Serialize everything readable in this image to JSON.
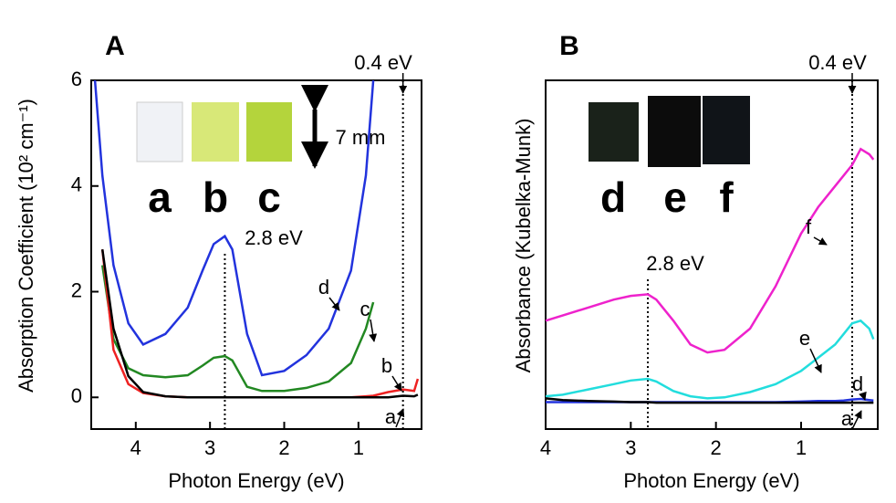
{
  "chart_data": [
    {
      "type": "line",
      "panel": "A",
      "xlabel": "Photon Energy (eV)",
      "ylabel": "Absorption Coefficient (10² cm⁻¹)",
      "x": [
        4.55,
        4.45,
        4.3,
        4.1,
        3.9,
        3.6,
        3.3,
        3.1,
        2.95,
        2.8,
        2.7,
        2.5,
        2.3,
        2.0,
        1.7,
        1.4,
        1.1,
        0.9,
        0.8,
        0.6,
        0.4,
        0.25,
        0.2
      ],
      "series": [
        {
          "name": "d",
          "color": "#2233dd",
          "values": [
            6,
            4.2,
            2.5,
            1.4,
            1.0,
            1.2,
            1.7,
            2.4,
            2.9,
            3.05,
            2.8,
            1.2,
            0.42,
            0.5,
            0.8,
            1.3,
            2.4,
            4.2,
            6,
            null,
            null,
            null,
            null
          ]
        },
        {
          "name": "c",
          "color": "#228822",
          "values": [
            null,
            2.5,
            1.1,
            0.55,
            0.42,
            0.38,
            0.42,
            0.6,
            0.75,
            0.78,
            0.7,
            0.2,
            0.12,
            0.12,
            0.18,
            0.3,
            0.65,
            1.3,
            1.8,
            null,
            null,
            null,
            null
          ]
        },
        {
          "name": "b",
          "color": "#ee2222",
          "values": [
            null,
            2.8,
            0.9,
            0.25,
            0.08,
            0.02,
            0,
            0,
            0,
            0,
            0,
            0,
            0,
            0,
            0,
            0,
            0,
            0.02,
            0.03,
            0.1,
            0.15,
            0.12,
            0.35
          ]
        },
        {
          "name": "a",
          "color": "#000000",
          "values": [
            null,
            2.8,
            1.3,
            0.4,
            0.1,
            0.02,
            0,
            0,
            0,
            0,
            0,
            0,
            0,
            0,
            0,
            0,
            0,
            0,
            0,
            0,
            0.03,
            0.02,
            0.05
          ]
        }
      ],
      "xlim": [
        4.6,
        0.15
      ],
      "xticks": [
        4,
        3,
        2,
        1
      ],
      "ylim": [
        -0.6,
        6
      ],
      "yticks": [
        0,
        2,
        4,
        6
      ],
      "vlines": [
        2.8,
        0.4
      ],
      "annotations": [
        "2.8 eV",
        "0.4 eV"
      ],
      "photo_labels": [
        "a",
        "b",
        "c"
      ],
      "scale_label": "7 mm"
    },
    {
      "type": "line",
      "panel": "B",
      "xlabel": "Photon Energy (eV)",
      "ylabel": "Absorbance (Kubelka-Munk)",
      "x": [
        4.0,
        3.8,
        3.5,
        3.2,
        3.0,
        2.8,
        2.7,
        2.5,
        2.3,
        2.1,
        1.9,
        1.6,
        1.3,
        1.0,
        0.8,
        0.6,
        0.5,
        0.4,
        0.3,
        0.2,
        0.15
      ],
      "series": [
        {
          "name": "f",
          "color": "#ee22cc",
          "values": [
            1.55,
            1.65,
            1.8,
            1.95,
            2.02,
            2.05,
            1.95,
            1.55,
            1.1,
            0.95,
            1.0,
            1.4,
            2.2,
            3.2,
            3.7,
            4.1,
            4.3,
            4.5,
            4.8,
            4.7,
            4.6
          ]
        },
        {
          "name": "e",
          "color": "#22dddd",
          "values": [
            0.12,
            0.15,
            0.25,
            0.35,
            0.42,
            0.45,
            0.4,
            0.22,
            0.12,
            0.08,
            0.1,
            0.2,
            0.35,
            0.6,
            0.85,
            1.1,
            1.3,
            1.5,
            1.55,
            1.4,
            1.2
          ]
        },
        {
          "name": "d",
          "color": "#2233dd",
          "values": [
            0.01,
            0.01,
            0.01,
            0.01,
            0.01,
            0.01,
            0.01,
            0.01,
            0.01,
            0.01,
            0.01,
            0.01,
            0.01,
            0.02,
            0.03,
            0.03,
            0.04,
            0.06,
            0.07,
            0.05,
            0.04
          ]
        },
        {
          "name": "a",
          "color": "#000000",
          "values": [
            0.08,
            0.05,
            0.03,
            0.02,
            0.01,
            0.01,
            0,
            0,
            0,
            0,
            0,
            0,
            0,
            0,
            0,
            0,
            0,
            0,
            0,
            0,
            0
          ]
        }
      ],
      "xlim": [
        4.0,
        0.1
      ],
      "xticks": [
        4,
        3,
        2,
        1
      ],
      "ylim": [
        -0.5,
        6.1
      ],
      "vlines": [
        2.8,
        0.4
      ],
      "annotations": [
        "2.8 eV",
        "0.4 eV"
      ],
      "photo_labels": [
        "d",
        "e",
        "f"
      ]
    }
  ]
}
